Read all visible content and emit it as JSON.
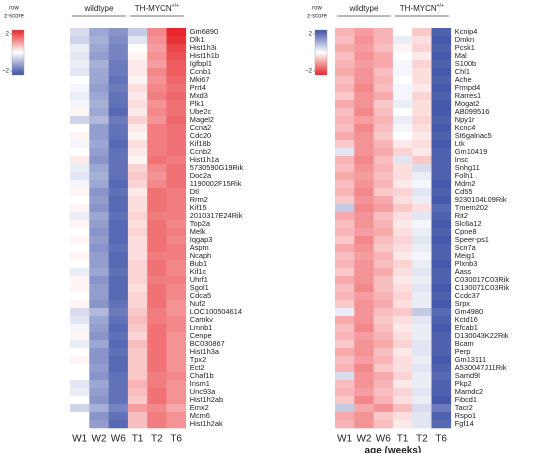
{
  "chart_data": [
    {
      "type": "heatmap",
      "legend_title": [
        "row",
        "z-score"
      ],
      "zlim": [
        -2,
        2
      ],
      "zticks": [
        2,
        {
          "value": -2,
          "label": "−2"
        }
      ],
      "colors": {
        "low": "#3b4fa6",
        "mid": "#ffffff",
        "high": "#e8262b"
      },
      "groups": [
        {
          "name": "wildtype",
          "categories": [
            "W1",
            "W2",
            "W6"
          ]
        },
        {
          "name": "TH-MYCN",
          "superscript": "+/+",
          "categories": [
            "T1",
            "T2",
            "T6"
          ]
        }
      ],
      "rows": [
        "Gm6890",
        "Dlk1",
        "Hist1h3i",
        "Hist1h1b",
        "Igfbpl1",
        "Ccnb1",
        "Mki67",
        "Prrt4",
        "Mxd3",
        "Plk1",
        "Ube2c",
        "Magel2",
        "Ccna2",
        "Cdc20",
        "Kif18b",
        "Ccnb2",
        "Hist1h1a",
        "5730590G19Rik",
        "Doc2a",
        "1190002F15Rik",
        "Dtl",
        "Rrm2",
        "Kif15",
        "2010317E24Rik",
        "Top2a",
        "Melk",
        "Iqgap3",
        "Aspm",
        "Ncaph",
        "Bub1",
        "Kif1c",
        "Uhrf1",
        "Sgol1",
        "Cdca5",
        "Nuf2",
        "LOC100504614",
        "Camkv",
        "Lmnb1",
        "Cenpe",
        "BC030867",
        "Hist1h3a",
        "Tpx2",
        "Ect2",
        "Chaf1b",
        "Insm1",
        "Unc93a",
        "Hist1h2ab",
        "Emx2",
        "Mcm6",
        "Hist1h2ak"
      ],
      "values": [
        [
          -0.4,
          -1.0,
          -1.2,
          -0.6,
          1.1,
          2.0
        ],
        [
          -0.5,
          -0.9,
          -1.3,
          -0.3,
          1.0,
          1.9
        ],
        [
          -0.2,
          -1.0,
          -1.4,
          0.0,
          0.9,
          1.7
        ],
        [
          -0.3,
          -1.1,
          -1.4,
          0.1,
          1.0,
          1.6
        ],
        [
          -0.2,
          -0.9,
          -1.5,
          0.2,
          0.9,
          1.5
        ],
        [
          -0.3,
          -1.0,
          -1.5,
          0.2,
          1.1,
          1.5
        ],
        [
          0.0,
          -1.0,
          -1.6,
          0.1,
          1.0,
          1.4
        ],
        [
          -0.1,
          -1.1,
          -1.5,
          0.3,
          1.1,
          1.3
        ],
        [
          -0.2,
          -1.0,
          -1.6,
          0.2,
          1.2,
          1.4
        ],
        [
          -0.1,
          -0.9,
          -1.6,
          0.3,
          1.0,
          1.3
        ],
        [
          0.1,
          -1.0,
          -1.7,
          0.2,
          1.1,
          1.3
        ],
        [
          -0.5,
          -0.8,
          -1.5,
          0.4,
          1.0,
          1.4
        ],
        [
          0.0,
          -1.1,
          -1.6,
          0.2,
          1.2,
          1.3
        ],
        [
          0.1,
          -1.1,
          -1.6,
          0.1,
          1.2,
          1.3
        ],
        [
          -0.1,
          -1.0,
          -1.7,
          0.3,
          1.2,
          1.3
        ],
        [
          0.0,
          -1.1,
          -1.6,
          0.2,
          1.2,
          1.3
        ],
        [
          0.2,
          -1.2,
          -1.6,
          0.1,
          1.3,
          1.2
        ],
        [
          -0.2,
          -1.0,
          -1.6,
          0.4,
          1.1,
          1.3
        ],
        [
          -0.3,
          -0.9,
          -1.6,
          0.5,
          1.0,
          1.3
        ],
        [
          -0.1,
          -1.0,
          -1.7,
          0.4,
          1.1,
          1.3
        ],
        [
          0.1,
          -1.2,
          -1.6,
          0.2,
          1.3,
          1.2
        ],
        [
          0.0,
          -1.1,
          -1.7,
          0.3,
          1.3,
          1.2
        ],
        [
          0.1,
          -1.2,
          -1.7,
          0.3,
          1.3,
          1.2
        ],
        [
          -0.2,
          -1.0,
          -1.6,
          0.4,
          1.2,
          1.2
        ],
        [
          0.1,
          -1.1,
          -1.7,
          0.3,
          1.3,
          1.1
        ],
        [
          0.0,
          -1.2,
          -1.7,
          0.4,
          1.3,
          1.2
        ],
        [
          0.1,
          -1.1,
          -1.7,
          0.3,
          1.3,
          1.1
        ],
        [
          0.0,
          -1.2,
          -1.6,
          0.3,
          1.3,
          1.2
        ],
        [
          0.1,
          -1.1,
          -1.7,
          0.3,
          1.2,
          1.2
        ],
        [
          0.0,
          -1.1,
          -1.7,
          0.4,
          1.3,
          1.1
        ],
        [
          -0.2,
          -1.0,
          -1.6,
          0.4,
          1.3,
          1.1
        ],
        [
          0.1,
          -1.2,
          -1.7,
          0.4,
          1.2,
          1.2
        ],
        [
          0.1,
          -1.1,
          -1.7,
          0.3,
          1.3,
          1.1
        ],
        [
          0.0,
          -1.1,
          -1.7,
          0.4,
          1.3,
          1.1
        ],
        [
          0.1,
          -1.2,
          -1.6,
          0.4,
          1.3,
          1.0
        ],
        [
          -0.4,
          -0.8,
          -1.5,
          0.5,
          1.2,
          1.0
        ],
        [
          -0.3,
          -1.0,
          -1.6,
          0.6,
          1.2,
          1.1
        ],
        [
          -0.1,
          -1.1,
          -1.7,
          0.5,
          1.3,
          1.1
        ],
        [
          0.1,
          -1.2,
          -1.6,
          0.4,
          1.3,
          1.0
        ],
        [
          -0.2,
          -1.0,
          -1.7,
          0.6,
          1.3,
          1.0
        ],
        [
          0.0,
          -1.2,
          -1.6,
          0.5,
          1.3,
          1.0
        ],
        [
          0.1,
          -1.2,
          -1.7,
          0.5,
          1.3,
          1.0
        ],
        [
          0.0,
          -1.1,
          -1.7,
          0.5,
          1.3,
          1.0
        ],
        [
          0.0,
          -1.2,
          -1.6,
          0.5,
          1.2,
          1.1
        ],
        [
          -0.3,
          -1.0,
          -1.6,
          0.7,
          1.2,
          1.0
        ],
        [
          -0.2,
          -1.1,
          -1.6,
          0.6,
          1.3,
          1.0
        ],
        [
          0.0,
          -1.2,
          -1.6,
          0.5,
          1.3,
          1.0
        ],
        [
          -0.5,
          -0.9,
          -1.4,
          0.9,
          1.1,
          0.8
        ],
        [
          0.0,
          -1.2,
          -1.6,
          0.6,
          1.2,
          1.0
        ],
        [
          0.0,
          -1.1,
          -1.7,
          0.6,
          1.2,
          1.0
        ]
      ]
    },
    {
      "type": "heatmap",
      "legend_title": [
        "row",
        "z-score"
      ],
      "zlim": [
        -2,
        2
      ],
      "zticks": [
        2,
        {
          "value": -2,
          "label": "−2"
        }
      ],
      "colors": {
        "low": "#e8262b",
        "mid": "#ffffff",
        "high": "#3b4fa6"
      },
      "groups": [
        {
          "name": "wildtype",
          "categories": [
            "W1",
            "W2",
            "W6"
          ]
        },
        {
          "name": "TH-MYCN",
          "superscript": "+/+",
          "categories": [
            "T1",
            "T2",
            "T6"
          ]
        }
      ],
      "x_label": "age (weeks)",
      "rows": [
        "Kcnip4",
        "Dmkn",
        "Pcsk1",
        "Mal",
        "S100b",
        "Chl1",
        "Ache",
        "Frmpd4",
        "Rarres1",
        "Mogat2",
        "AB099516",
        "Npy1r",
        "Kcnc4",
        "St6galnac5",
        "Ltk",
        "Gm10419",
        "Insc",
        "Snhg11",
        "Folh1",
        "Mdm2",
        "Cd55",
        "9230104L09Rik",
        "Tmem202",
        "Rit2",
        "Slc6a12",
        "Cpne8",
        "Speer-ps1",
        "Scn7a",
        "Meig1",
        "Plxnb3",
        "Aass",
        "C030017C03Rik",
        "C130071C03Rik",
        "Ccdc37",
        "Srpx",
        "Gm4980",
        "Kctd16",
        "Efcab1",
        "D130043K22Rik",
        "Bcam",
        "Perp",
        "Gm13111",
        "A530047J11Rik",
        "Samd9l",
        "Pkp2",
        "Mamdc2",
        "Fibcd1",
        "Tacr2",
        "Rspo1",
        "Fgf14"
      ],
      "values": [
        [
          -0.7,
          -0.9,
          -0.7,
          0.0,
          -0.5,
          1.8
        ],
        [
          -0.6,
          -1.0,
          -0.7,
          0.2,
          -0.3,
          1.9
        ],
        [
          -0.8,
          -0.9,
          -0.6,
          -0.1,
          -0.4,
          1.8
        ],
        [
          -0.6,
          -1.0,
          -0.8,
          0.0,
          -0.2,
          1.9
        ],
        [
          -0.7,
          -0.9,
          -0.8,
          0.1,
          -0.4,
          1.8
        ],
        [
          -0.8,
          -1.0,
          -0.6,
          0.1,
          -0.3,
          1.9
        ],
        [
          -0.6,
          -1.0,
          -0.7,
          0.0,
          -0.3,
          1.8
        ],
        [
          -0.7,
          -1.1,
          -0.6,
          0.1,
          -0.2,
          1.9
        ],
        [
          -0.5,
          -1.0,
          -0.8,
          0.1,
          -0.4,
          1.8
        ],
        [
          -0.8,
          -1.0,
          -0.5,
          0.2,
          -0.3,
          1.9
        ],
        [
          -0.6,
          -1.1,
          -0.6,
          0.0,
          -0.3,
          1.9
        ],
        [
          -0.7,
          -0.9,
          -0.7,
          0.2,
          -0.4,
          1.8
        ],
        [
          -0.6,
          -1.1,
          -0.6,
          0.1,
          -0.3,
          1.9
        ],
        [
          -0.8,
          -1.0,
          -0.5,
          0.0,
          -0.2,
          1.8
        ],
        [
          -0.5,
          -1.0,
          -0.7,
          -0.2,
          -0.3,
          1.9
        ],
        [
          0.3,
          -1.0,
          -0.8,
          -0.4,
          -0.2,
          1.8
        ],
        [
          -0.7,
          -1.1,
          -0.6,
          0.3,
          -0.5,
          1.8
        ],
        [
          -0.6,
          -1.0,
          -0.7,
          -0.3,
          0.4,
          1.8
        ],
        [
          -0.8,
          -0.9,
          -0.6,
          -0.3,
          0.2,
          1.8
        ],
        [
          -0.6,
          -1.0,
          -0.7,
          -0.2,
          0.1,
          1.9
        ],
        [
          -0.7,
          -1.1,
          -0.5,
          -0.4,
          0.3,
          1.8
        ],
        [
          -0.5,
          -1.0,
          -0.8,
          -0.3,
          0.2,
          1.9
        ],
        [
          0.6,
          -1.1,
          -0.9,
          -0.5,
          -0.3,
          1.7
        ],
        [
          -0.8,
          -1.0,
          -0.6,
          -0.3,
          0.3,
          1.8
        ],
        [
          -0.6,
          -1.0,
          -0.7,
          -0.2,
          0.1,
          1.9
        ],
        [
          -0.7,
          -0.9,
          -0.8,
          -0.3,
          0.2,
          1.8
        ],
        [
          -0.5,
          -1.1,
          -0.6,
          -0.4,
          0.3,
          1.9
        ],
        [
          -0.8,
          -1.0,
          -0.5,
          -0.3,
          0.2,
          1.8
        ],
        [
          -0.6,
          -0.9,
          -0.7,
          -0.2,
          0.1,
          1.8
        ],
        [
          -0.7,
          -1.0,
          -0.6,
          -0.4,
          0.2,
          1.9
        ],
        [
          -0.5,
          -1.0,
          -0.8,
          -0.3,
          0.3,
          1.8
        ],
        [
          -0.8,
          -1.0,
          -0.6,
          -0.2,
          0.2,
          1.8
        ],
        [
          -0.6,
          -1.1,
          -0.6,
          -0.3,
          0.3,
          1.9
        ],
        [
          -0.7,
          -0.9,
          -0.7,
          -0.4,
          0.2,
          1.8
        ],
        [
          -0.5,
          -1.0,
          -0.8,
          -0.3,
          0.2,
          1.9
        ],
        [
          0.2,
          -1.0,
          -0.6,
          -0.5,
          0.6,
          1.7
        ],
        [
          -0.8,
          -1.0,
          -0.5,
          -0.3,
          0.3,
          1.8
        ],
        [
          -0.6,
          -1.1,
          -0.6,
          -0.2,
          0.2,
          1.9
        ],
        [
          -0.7,
          -0.9,
          -0.7,
          -0.3,
          0.2,
          1.8
        ],
        [
          -0.5,
          -1.0,
          -0.8,
          -0.4,
          0.3,
          1.8
        ],
        [
          -0.8,
          -1.0,
          -0.6,
          -0.2,
          0.3,
          1.8
        ],
        [
          -0.6,
          -0.9,
          -0.7,
          -0.3,
          0.2,
          1.9
        ],
        [
          -0.7,
          -1.1,
          -0.5,
          -0.3,
          0.3,
          1.8
        ],
        [
          0.4,
          -1.0,
          -0.8,
          -0.4,
          0.2,
          1.7
        ],
        [
          -0.6,
          -1.0,
          -0.7,
          -0.2,
          0.2,
          1.8
        ],
        [
          -0.7,
          -0.9,
          -0.6,
          -0.4,
          0.3,
          1.8
        ],
        [
          -0.5,
          -1.1,
          -0.7,
          -0.3,
          0.2,
          1.9
        ],
        [
          0.6,
          -0.8,
          -1.0,
          -0.6,
          0.4,
          1.5
        ],
        [
          -0.8,
          -1.0,
          -0.5,
          -0.3,
          0.3,
          1.8
        ],
        [
          -0.7,
          -1.0,
          -0.6,
          -0.2,
          0.3,
          1.7
        ]
      ]
    }
  ]
}
